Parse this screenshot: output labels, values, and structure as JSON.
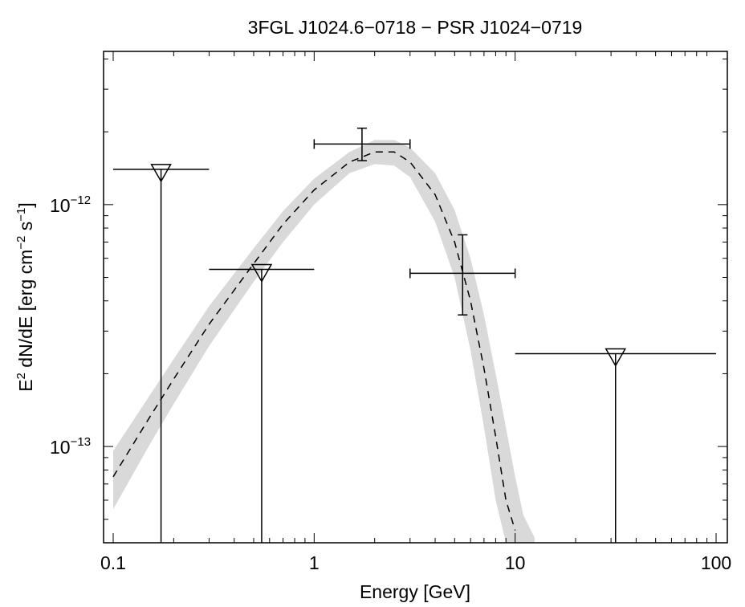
{
  "chart_data": {
    "type": "scatter",
    "title": "3FGL J1024.6−0718 − PSR J1024−0719",
    "xlabel": "Energy [GeV]",
    "ylabel": {
      "prefix": "E",
      "sup1": "2",
      "mid": " dN/dE [erg cm",
      "sup2": "−2",
      "mid2": " s",
      "sup3": "−1",
      "suffix": "]"
    },
    "x_scale": "log",
    "y_scale": "log",
    "xlim": [
      0.1,
      100
    ],
    "ylim": [
      4e-14,
      4.3e-12
    ],
    "x_ticks": [
      {
        "value": 0.1,
        "label": "0.1"
      },
      {
        "value": 1,
        "label": "1"
      },
      {
        "value": 10,
        "label": "10"
      },
      {
        "value": 100,
        "label": "100"
      }
    ],
    "y_ticks": [
      {
        "value": 1e-13,
        "base": "10",
        "exp": "−13"
      },
      {
        "value": 1e-12,
        "base": "10",
        "exp": "−12"
      }
    ],
    "grid": false,
    "legend": "none",
    "flux_points": [
      {
        "x": 1.73,
        "y": 1.78e-12,
        "x_low": 1.0,
        "x_high": 3.0,
        "y_low": 1.52e-12,
        "y_high": 2.07e-12
      },
      {
        "x": 5.48,
        "y": 5.2e-13,
        "x_low": 3.0,
        "x_high": 10.0,
        "y_low": 3.5e-13,
        "y_high": 7.5e-13
      }
    ],
    "upper_limits": [
      {
        "x": 0.173,
        "y": 1.4e-12,
        "x_low": 0.1,
        "x_high": 0.3
      },
      {
        "x": 0.548,
        "y": 5.4e-13,
        "x_low": 0.3,
        "x_high": 1.0
      },
      {
        "x": 31.6,
        "y": 2.42e-13,
        "x_low": 10.0,
        "x_high": 100.0
      }
    ],
    "model_curve": {
      "style": "dashed",
      "x": [
        0.1,
        0.15,
        0.2,
        0.3,
        0.5,
        0.7,
        1.0,
        1.5,
        2.0,
        2.5,
        3.0,
        4.0,
        5.0,
        6.0,
        7.0,
        8.0,
        9.0,
        10.0
      ],
      "y": [
        7.5e-14,
        1.3e-13,
        1.9e-13,
        3.2e-13,
        5.7e-13,
        8.3e-13,
        1.15e-12,
        1.5e-12,
        1.65e-12,
        1.65e-12,
        1.5e-12,
        1.1e-12,
        7e-13,
        4e-13,
        2.1e-13,
        1.1e-13,
        6e-14,
        4.5e-14
      ]
    },
    "uncertainty_band": {
      "color": "#d9d9d9",
      "x": [
        0.1,
        0.15,
        0.2,
        0.3,
        0.5,
        0.7,
        1.0,
        1.5,
        2.0,
        2.5,
        3.0,
        4.0,
        5.0,
        6.0,
        7.0,
        8.0,
        9.0,
        10.0,
        11.0,
        12.5
      ],
      "upper": [
        9.6e-14,
        1.6e-13,
        2.3e-13,
        3.8e-13,
        6.6e-13,
        9.4e-13,
        1.28e-12,
        1.65e-12,
        1.85e-12,
        1.85e-12,
        1.72e-12,
        1.35e-12,
        9.5e-13,
        6e-13,
        3.5e-13,
        2e-13,
        1.2e-13,
        7.5e-14,
        5.2e-14,
        4.2e-14
      ],
      "lower": [
        5.5e-14,
        1e-13,
        1.5e-13,
        2.6e-13,
        4.8e-13,
        7e-13,
        1e-12,
        1.35e-12,
        1.47e-12,
        1.45e-12,
        1.3e-12,
        8.5e-13,
        5e-13,
        2.5e-13,
        1.2e-13,
        6e-14,
        4e-14,
        4e-14,
        4e-14,
        4e-14
      ]
    }
  }
}
